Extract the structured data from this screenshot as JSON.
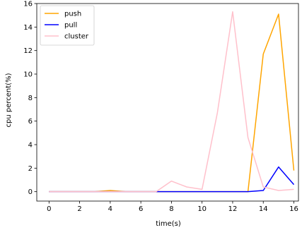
{
  "chart_data": {
    "type": "line",
    "xlabel": "time(s)",
    "ylabel": "cpu percent(%)",
    "xlim": [
      -0.8,
      16.3
    ],
    "ylim": [
      -0.8,
      16
    ],
    "xticks": [
      0,
      2,
      4,
      6,
      8,
      10,
      12,
      14,
      16
    ],
    "yticks": [
      0,
      2,
      4,
      6,
      8,
      10,
      12,
      14,
      16
    ],
    "grid": false,
    "legend_position": "top-left",
    "x": [
      0,
      1,
      2,
      3,
      4,
      5,
      6,
      7,
      8,
      9,
      10,
      11,
      12,
      13,
      14,
      15,
      16
    ],
    "series": [
      {
        "name": "push",
        "color": "#ffa500",
        "values": [
          0,
          0,
          0,
          0,
          0.1,
          0,
          0,
          0,
          0,
          0,
          0,
          0,
          0,
          0,
          11.7,
          15.1,
          1.8
        ]
      },
      {
        "name": "pull",
        "color": "#0000ff",
        "values": [
          0,
          0,
          0,
          0,
          0,
          0,
          0,
          0,
          0,
          0,
          0,
          0,
          0,
          0,
          0.1,
          2.1,
          0.6
        ]
      },
      {
        "name": "cluster",
        "color": "#ffc0cb",
        "values": [
          0,
          0,
          0,
          0,
          0,
          0,
          0,
          0,
          0.9,
          0.4,
          0.2,
          6.7,
          15.3,
          4.6,
          0.4,
          0.1,
          0.2
        ]
      }
    ]
  }
}
